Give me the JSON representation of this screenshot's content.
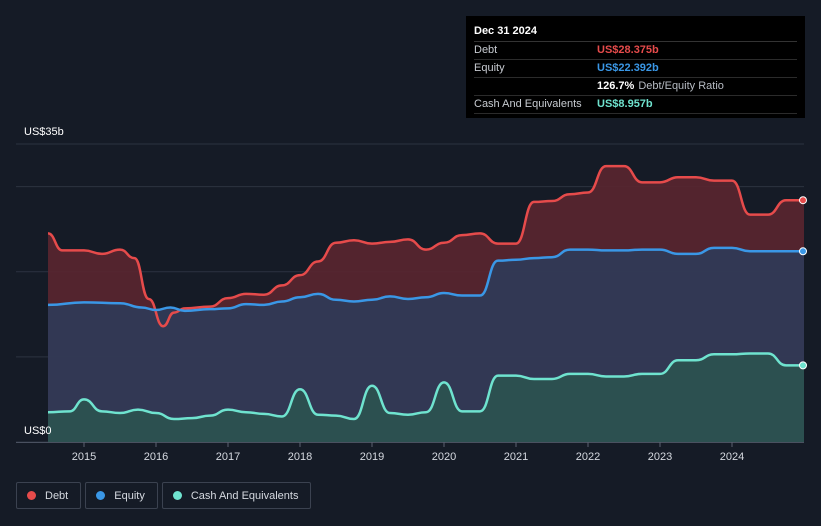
{
  "tooltip": {
    "date": "Dec 31 2024",
    "rows": [
      {
        "label": "Debt",
        "value": "US$28.375b",
        "color": "#e64b4b"
      },
      {
        "label": "Equity",
        "value": "US$22.392b",
        "color": "#3a97e6"
      },
      {
        "ratio_value": "126.7%",
        "ratio_label": "Debt/Equity Ratio"
      },
      {
        "label": "Cash And Equivalents",
        "value": "US$8.957b",
        "color": "#6fe3cf"
      }
    ]
  },
  "legend": [
    {
      "label": "Debt",
      "color": "#e64b4b"
    },
    {
      "label": "Equity",
      "color": "#3a97e6"
    },
    {
      "label": "Cash And Equivalents",
      "color": "#6fe3cf"
    }
  ],
  "chart_data": {
    "type": "area",
    "y_top_label": "US$35b",
    "y_bottom_label": "US$0",
    "ylim": [
      0,
      35
    ],
    "xlim": [
      2014.5,
      2025.0
    ],
    "x_ticks": [
      "2015",
      "2016",
      "2017",
      "2018",
      "2019",
      "2020",
      "2021",
      "2022",
      "2023",
      "2024"
    ],
    "series": [
      {
        "name": "Debt",
        "color": "#e64b4b",
        "points": [
          [
            2014.5,
            24.5
          ],
          [
            2014.7,
            22.5
          ],
          [
            2015.0,
            22.5
          ],
          [
            2015.25,
            22.1
          ],
          [
            2015.5,
            22.6
          ],
          [
            2015.7,
            21.6
          ],
          [
            2015.9,
            16.8
          ],
          [
            2016.1,
            13.6
          ],
          [
            2016.25,
            15.2
          ],
          [
            2016.4,
            15.7
          ],
          [
            2016.75,
            15.9
          ],
          [
            2017.0,
            16.9
          ],
          [
            2017.25,
            17.4
          ],
          [
            2017.5,
            17.3
          ],
          [
            2017.75,
            18.4
          ],
          [
            2018.0,
            19.6
          ],
          [
            2018.25,
            21.2
          ],
          [
            2018.5,
            23.4
          ],
          [
            2018.75,
            23.7
          ],
          [
            2019.0,
            23.3
          ],
          [
            2019.25,
            23.5
          ],
          [
            2019.5,
            23.8
          ],
          [
            2019.75,
            22.6
          ],
          [
            2020.0,
            23.4
          ],
          [
            2020.25,
            24.3
          ],
          [
            2020.5,
            24.5
          ],
          [
            2020.75,
            23.3
          ],
          [
            2021.0,
            23.3
          ],
          [
            2021.25,
            28.2
          ],
          [
            2021.5,
            28.3
          ],
          [
            2021.75,
            29.1
          ],
          [
            2022.0,
            29.3
          ],
          [
            2022.25,
            32.4
          ],
          [
            2022.5,
            32.4
          ],
          [
            2022.75,
            30.5
          ],
          [
            2023.0,
            30.5
          ],
          [
            2023.25,
            31.1
          ],
          [
            2023.5,
            31.1
          ],
          [
            2023.75,
            30.7
          ],
          [
            2024.0,
            30.7
          ],
          [
            2024.25,
            26.7
          ],
          [
            2024.5,
            26.7
          ],
          [
            2024.75,
            28.4
          ],
          [
            2025.0,
            28.4
          ]
        ]
      },
      {
        "name": "Equity",
        "color": "#3a97e6",
        "points": [
          [
            2014.5,
            16.1
          ],
          [
            2015.0,
            16.4
          ],
          [
            2015.5,
            16.3
          ],
          [
            2015.8,
            15.8
          ],
          [
            2016.0,
            15.5
          ],
          [
            2016.2,
            15.8
          ],
          [
            2016.4,
            15.4
          ],
          [
            2016.75,
            15.6
          ],
          [
            2017.0,
            15.7
          ],
          [
            2017.25,
            16.2
          ],
          [
            2017.5,
            16.1
          ],
          [
            2017.75,
            16.5
          ],
          [
            2018.0,
            17.0
          ],
          [
            2018.25,
            17.4
          ],
          [
            2018.5,
            16.7
          ],
          [
            2018.75,
            16.5
          ],
          [
            2019.0,
            16.7
          ],
          [
            2019.25,
            17.1
          ],
          [
            2019.5,
            16.8
          ],
          [
            2019.75,
            17.0
          ],
          [
            2020.0,
            17.5
          ],
          [
            2020.25,
            17.2
          ],
          [
            2020.5,
            17.2
          ],
          [
            2020.75,
            21.3
          ],
          [
            2021.0,
            21.4
          ],
          [
            2021.25,
            21.6
          ],
          [
            2021.5,
            21.7
          ],
          [
            2021.75,
            22.6
          ],
          [
            2022.0,
            22.6
          ],
          [
            2022.25,
            22.5
          ],
          [
            2022.5,
            22.5
          ],
          [
            2022.75,
            22.6
          ],
          [
            2023.0,
            22.6
          ],
          [
            2023.25,
            22.1
          ],
          [
            2023.5,
            22.1
          ],
          [
            2023.75,
            22.8
          ],
          [
            2024.0,
            22.8
          ],
          [
            2024.25,
            22.4
          ],
          [
            2024.5,
            22.4
          ],
          [
            2024.75,
            22.4
          ],
          [
            2025.0,
            22.4
          ]
        ]
      },
      {
        "name": "Cash And Equivalents",
        "color": "#6fe3cf",
        "points": [
          [
            2014.5,
            3.5
          ],
          [
            2014.8,
            3.6
          ],
          [
            2015.0,
            5.0
          ],
          [
            2015.25,
            3.6
          ],
          [
            2015.5,
            3.4
          ],
          [
            2015.75,
            3.8
          ],
          [
            2016.0,
            3.4
          ],
          [
            2016.25,
            2.7
          ],
          [
            2016.5,
            2.8
          ],
          [
            2016.75,
            3.1
          ],
          [
            2017.0,
            3.8
          ],
          [
            2017.25,
            3.5
          ],
          [
            2017.5,
            3.3
          ],
          [
            2017.75,
            3.0
          ],
          [
            2018.0,
            6.2
          ],
          [
            2018.25,
            3.2
          ],
          [
            2018.5,
            3.1
          ],
          [
            2018.75,
            2.7
          ],
          [
            2019.0,
            6.6
          ],
          [
            2019.25,
            3.4
          ],
          [
            2019.5,
            3.2
          ],
          [
            2019.75,
            3.5
          ],
          [
            2020.0,
            7.0
          ],
          [
            2020.25,
            3.6
          ],
          [
            2020.5,
            3.6
          ],
          [
            2020.75,
            7.8
          ],
          [
            2021.0,
            7.8
          ],
          [
            2021.25,
            7.4
          ],
          [
            2021.5,
            7.4
          ],
          [
            2021.75,
            8.0
          ],
          [
            2022.0,
            8.0
          ],
          [
            2022.25,
            7.7
          ],
          [
            2022.5,
            7.7
          ],
          [
            2022.75,
            8.0
          ],
          [
            2023.0,
            8.0
          ],
          [
            2023.25,
            9.6
          ],
          [
            2023.5,
            9.6
          ],
          [
            2023.75,
            10.3
          ],
          [
            2024.0,
            10.3
          ],
          [
            2024.25,
            10.4
          ],
          [
            2024.5,
            10.4
          ],
          [
            2024.75,
            9.0
          ],
          [
            2025.0,
            9.0
          ]
        ]
      }
    ]
  }
}
